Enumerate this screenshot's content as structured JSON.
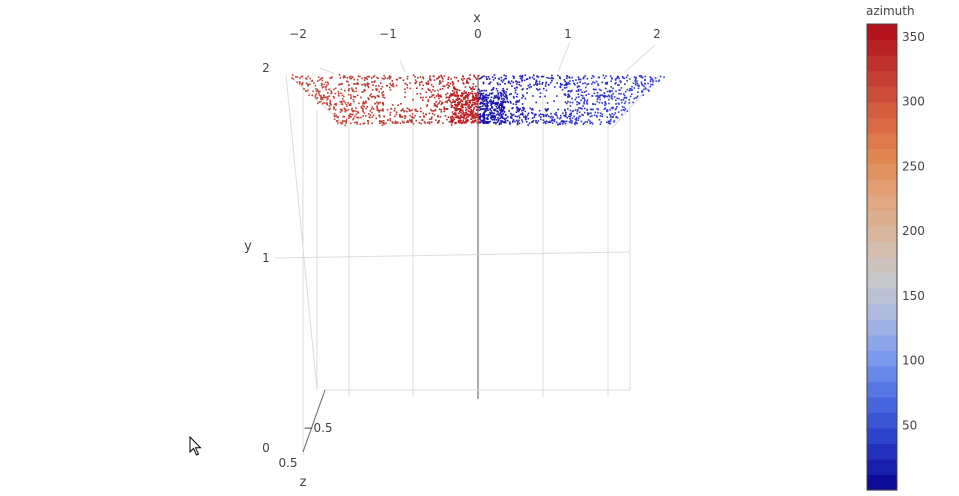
{
  "chart_data": {
    "type": "scatter3d",
    "axes": {
      "x": {
        "title": "x",
        "ticks": [
          "−2",
          "−1",
          "0",
          "1",
          "2"
        ],
        "range": [
          -2.7,
          2.7
        ]
      },
      "y": {
        "title": "y",
        "ticks": [
          "0",
          "1",
          "2"
        ],
        "range": [
          0,
          2.1
        ]
      },
      "z": {
        "title": "z",
        "ticks": [
          "−0.5",
          "0.5"
        ]
      }
    },
    "series": [
      {
        "marker_color_by": "azimuth",
        "description_points": "LiDAR-like scan band near y ≈ 2: left half x ∈ [−2.7, 0] colored ~300–360 (red), right half x ∈ [0, 2.7] colored ~0–60 (blue)",
        "x_min": -2.7,
        "x_max": 2.7,
        "y_center": 1.95
      }
    ],
    "colorbar": {
      "title": "azimuth",
      "ticks": [
        "350",
        "300",
        "250",
        "200",
        "150",
        "100",
        "50"
      ],
      "tick_values": [
        350,
        300,
        250,
        200,
        150,
        100,
        50
      ],
      "range": [
        0,
        360
      ],
      "colorscale": [
        "#0d0d9a",
        "#2a3dc9",
        "#4a6be0",
        "#7a98ee",
        "#a9b8e2",
        "#c8c8c8",
        "#d8b8a0",
        "#e2a47c",
        "#e0864f",
        "#d66040",
        "#c23a32",
        "#b3131c"
      ]
    },
    "grid": true
  }
}
